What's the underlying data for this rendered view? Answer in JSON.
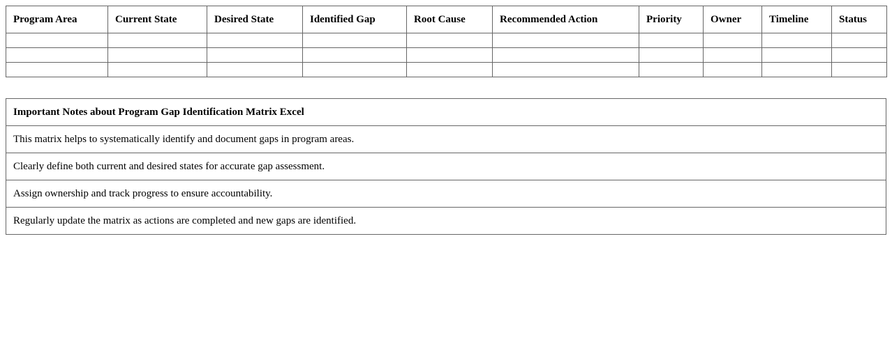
{
  "matrix": {
    "headers": [
      "Program Area",
      "Current State",
      "Desired State",
      "Identified Gap",
      "Root Cause",
      "Recommended Action",
      "Priority",
      "Owner",
      "Timeline",
      "Status"
    ],
    "empty_rows": 3
  },
  "notes": {
    "title": "Important Notes about Program Gap Identification Matrix Excel",
    "items": [
      "This matrix helps to systematically identify and document gaps in program areas.",
      "Clearly define both current and desired states for accurate gap assessment.",
      "Assign ownership and track progress to ensure accountability.",
      "Regularly update the matrix as actions are completed and new gaps are identified."
    ]
  }
}
